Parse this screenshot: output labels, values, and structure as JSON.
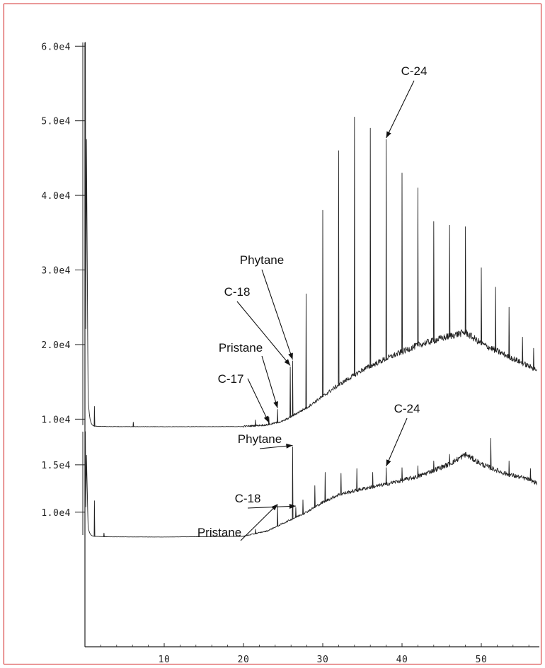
{
  "chart_data": {
    "type": "line",
    "title": "",
    "xlabel": "",
    "ylabel": "",
    "xlim": [
      -0.5,
      57
    ],
    "x_ticks": [
      10,
      20,
      30,
      40,
      50
    ],
    "x_tick_labels": [
      "10",
      "20",
      "30",
      "40",
      "50"
    ],
    "grid": false,
    "legend": "none",
    "panels": [
      {
        "name": "upper",
        "ylim": [
          8800,
          60500
        ],
        "y_ticks": [
          10000,
          20000,
          30000,
          40000,
          50000,
          60000
        ],
        "y_tick_labels": [
          "1.0e4",
          "2.0e4",
          "3.0e4",
          "4.0e4",
          "5.0e4",
          "6.0e4"
        ],
        "baseline": [
          [
            0,
            60000
          ],
          [
            0.4,
            9200
          ],
          [
            1.0,
            9050
          ],
          [
            3,
            9000
          ],
          [
            10,
            8980
          ],
          [
            20,
            9000
          ],
          [
            23,
            9200
          ],
          [
            25,
            9700
          ],
          [
            28,
            11500
          ],
          [
            30,
            13000
          ],
          [
            32,
            14500
          ],
          [
            35,
            16500
          ],
          [
            38,
            18000
          ],
          [
            42,
            19800
          ],
          [
            46,
            21000
          ],
          [
            48,
            21500
          ],
          [
            50,
            20000
          ],
          [
            53,
            18500
          ],
          [
            56,
            17000
          ],
          [
            57,
            16500
          ]
        ],
        "peaks": [
          {
            "x": 1.2,
            "y": 11700
          },
          {
            "x": 6.1,
            "y": 9600
          },
          {
            "x": 21.5,
            "y": 9900
          },
          {
            "x": 23.2,
            "y": 10300
          },
          {
            "x": 24.3,
            "y": 11300
          },
          {
            "x": 25.9,
            "y": 17000
          },
          {
            "x": 26.2,
            "y": 17800
          },
          {
            "x": 27.9,
            "y": 26800
          },
          {
            "x": 30.0,
            "y": 38000
          },
          {
            "x": 32.0,
            "y": 46000
          },
          {
            "x": 34.0,
            "y": 50500
          },
          {
            "x": 36.0,
            "y": 49000
          },
          {
            "x": 38.0,
            "y": 47500
          },
          {
            "x": 40.0,
            "y": 43000
          },
          {
            "x": 42.0,
            "y": 41000
          },
          {
            "x": 44.0,
            "y": 36500
          },
          {
            "x": 46.0,
            "y": 36000
          },
          {
            "x": 48.0,
            "y": 35800
          },
          {
            "x": 50.0,
            "y": 30300
          },
          {
            "x": 51.8,
            "y": 27700
          },
          {
            "x": 53.5,
            "y": 25000
          },
          {
            "x": 55.2,
            "y": 21000
          },
          {
            "x": 56.6,
            "y": 19500
          }
        ],
        "annotations": [
          {
            "label": "C-24",
            "x": 38.0,
            "y": 47500
          },
          {
            "label": "Phytane",
            "x": 26.2,
            "y": 17800
          },
          {
            "label": "C-18",
            "x": 25.9,
            "y": 17000
          },
          {
            "label": "Pristane",
            "x": 24.3,
            "y": 11300
          },
          {
            "label": "C-17",
            "x": 23.2,
            "y": 10300
          }
        ]
      },
      {
        "name": "lower",
        "ylim": [
          6700,
          18500
        ],
        "y_ticks": [
          10000,
          15000
        ],
        "y_tick_labels": [
          "1.0e4",
          "1.5e4"
        ],
        "baseline": [
          [
            0,
            18500
          ],
          [
            0.4,
            7600
          ],
          [
            1.0,
            7450
          ],
          [
            3,
            7400
          ],
          [
            10,
            7380
          ],
          [
            20,
            7450
          ],
          [
            23,
            8000
          ],
          [
            25,
            8800
          ],
          [
            28,
            10000
          ],
          [
            30,
            11000
          ],
          [
            32,
            11800
          ],
          [
            35,
            12400
          ],
          [
            38,
            12900
          ],
          [
            42,
            13700
          ],
          [
            46,
            15000
          ],
          [
            48,
            16000
          ],
          [
            50,
            15000
          ],
          [
            53,
            14000
          ],
          [
            56,
            13400
          ],
          [
            57,
            13000
          ]
        ],
        "peaks": [
          {
            "x": 1.2,
            "y": 11200
          },
          {
            "x": 2.4,
            "y": 7800
          },
          {
            "x": 21.5,
            "y": 8200
          },
          {
            "x": 24.3,
            "y": 10700
          },
          {
            "x": 26.2,
            "y": 16900
          },
          {
            "x": 26.6,
            "y": 10500
          },
          {
            "x": 27.5,
            "y": 11300
          },
          {
            "x": 29.0,
            "y": 12800
          },
          {
            "x": 30.3,
            "y": 14200
          },
          {
            "x": 32.3,
            "y": 14100
          },
          {
            "x": 34.3,
            "y": 14600
          },
          {
            "x": 36.3,
            "y": 14200
          },
          {
            "x": 38.0,
            "y": 14700
          },
          {
            "x": 40.0,
            "y": 14700
          },
          {
            "x": 42.0,
            "y": 14900
          },
          {
            "x": 44.0,
            "y": 15400
          },
          {
            "x": 46.0,
            "y": 16100
          },
          {
            "x": 48.0,
            "y": 16300
          },
          {
            "x": 51.2,
            "y": 17800
          },
          {
            "x": 53.5,
            "y": 15400
          },
          {
            "x": 56.2,
            "y": 14600
          }
        ],
        "annotations": [
          {
            "label": "C-24",
            "x": 38.0,
            "y": 14700
          },
          {
            "label": "Phytane",
            "x": 26.2,
            "y": 16900
          },
          {
            "label": "C-18",
            "x": 26.6,
            "y": 10500
          },
          {
            "label": "Pristane",
            "x": 24.3,
            "y": 10700
          }
        ]
      }
    ]
  }
}
